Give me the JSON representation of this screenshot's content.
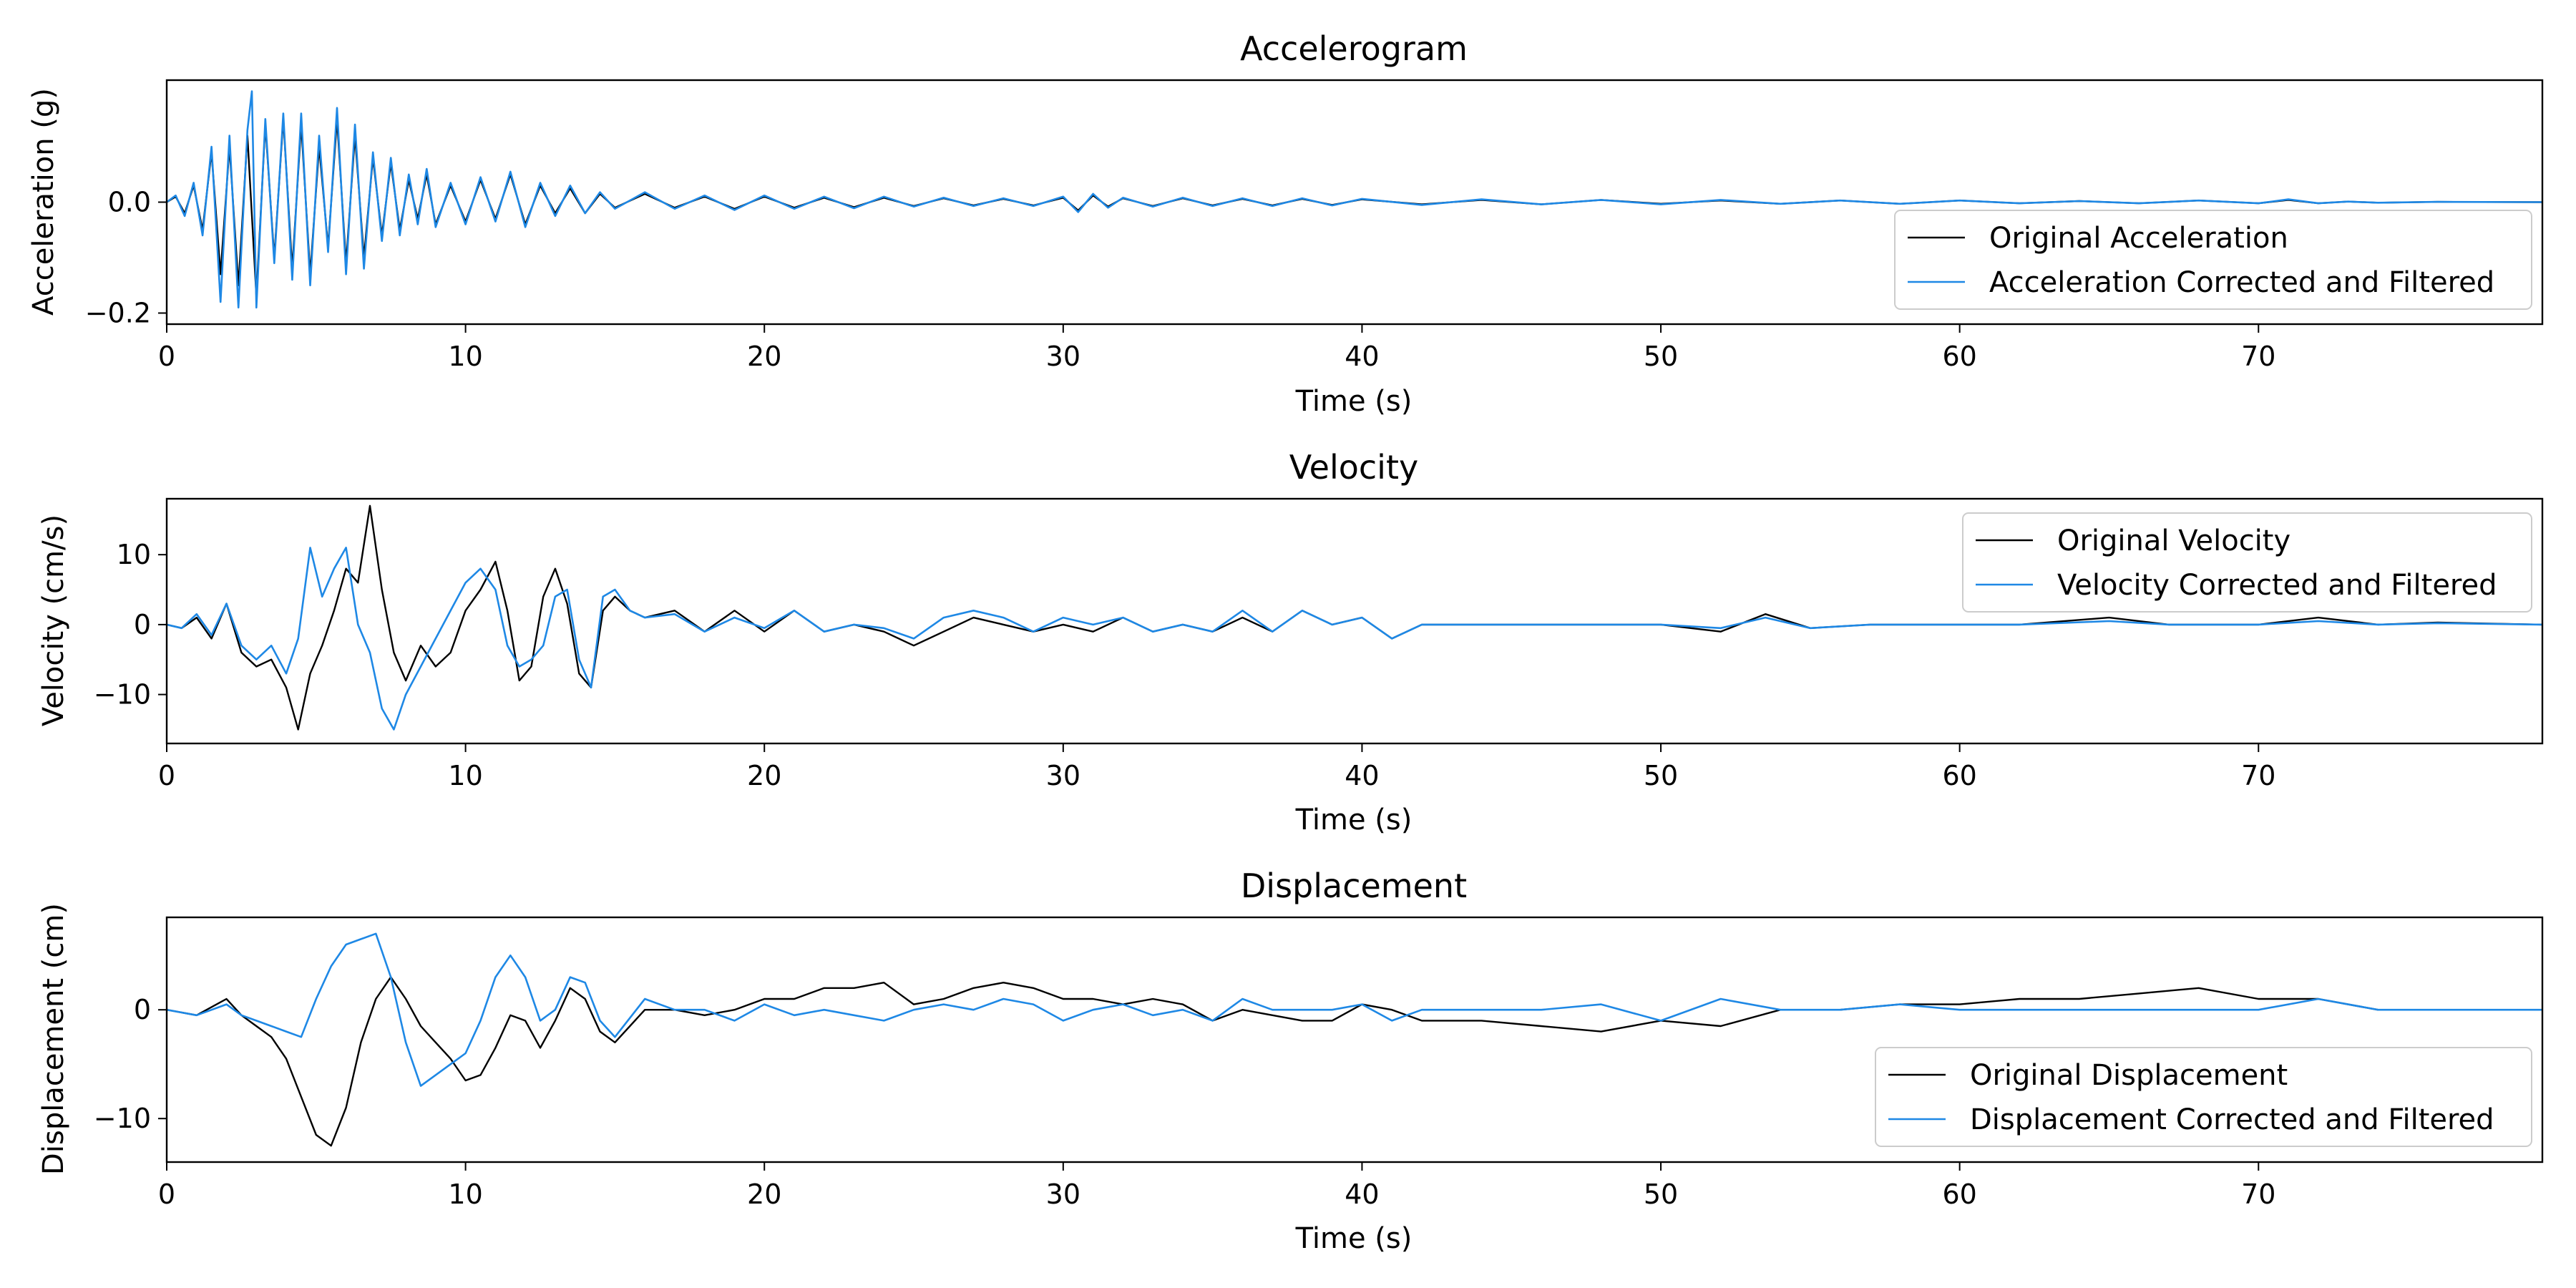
{
  "chart_data": [
    {
      "type": "line",
      "title": "Accelerogram",
      "xlabel": "Time (s)",
      "ylabel": "Acceleration (g)",
      "xlim": [
        0,
        79.5
      ],
      "ylim": [
        -0.22,
        0.22
      ],
      "xticks": [
        0,
        10,
        20,
        30,
        40,
        50,
        60,
        70
      ],
      "yticks": [
        -0.2,
        0.0
      ],
      "ytick_labels": [
        "−0.2",
        "0.0"
      ],
      "grid": false,
      "legend": "lower-right",
      "series": [
        {
          "name": "Original Acceleration",
          "color": "#000000",
          "x": [
            0,
            0.3,
            0.6,
            0.9,
            1.2,
            1.5,
            1.8,
            2.1,
            2.4,
            2.7,
            3.0,
            3.3,
            3.6,
            3.9,
            4.2,
            4.5,
            4.8,
            5.1,
            5.4,
            5.7,
            6.0,
            6.3,
            6.6,
            6.9,
            7.2,
            7.5,
            7.8,
            8.1,
            8.4,
            8.7,
            9.0,
            9.5,
            10.0,
            10.5,
            11.0,
            11.5,
            12.0,
            12.5,
            13.0,
            13.5,
            14.0,
            14.5,
            15.0,
            16,
            17,
            18,
            19,
            20,
            21,
            22,
            23,
            24,
            25,
            26,
            27,
            28,
            29,
            30,
            30.5,
            31,
            31.5,
            32,
            33,
            34,
            35,
            36,
            37,
            38,
            39,
            40,
            42,
            44,
            46,
            48,
            50,
            52,
            54,
            56,
            58,
            60,
            62,
            64,
            66,
            68,
            70,
            71,
            72,
            73,
            74,
            76,
            79.5
          ],
          "values": [
            0,
            0.01,
            -0.02,
            0.03,
            -0.05,
            0.09,
            -0.13,
            0.1,
            -0.15,
            0.12,
            -0.17,
            0.14,
            -0.1,
            0.15,
            -0.12,
            0.14,
            -0.13,
            0.1,
            -0.08,
            0.15,
            -0.11,
            0.12,
            -0.1,
            0.08,
            -0.06,
            0.07,
            -0.05,
            0.04,
            -0.03,
            0.05,
            -0.04,
            0.03,
            -0.035,
            0.04,
            -0.03,
            0.05,
            -0.04,
            0.03,
            -0.02,
            0.025,
            -0.02,
            0.015,
            -0.01,
            0.015,
            -0.01,
            0.01,
            -0.012,
            0.01,
            -0.01,
            0.008,
            -0.009,
            0.008,
            -0.007,
            0.007,
            -0.006,
            0.006,
            -0.006,
            0.008,
            -0.015,
            0.012,
            -0.008,
            0.007,
            -0.007,
            0.007,
            -0.006,
            0.006,
            -0.006,
            0.006,
            -0.005,
            0.005,
            -0.004,
            0.004,
            -0.004,
            0.004,
            -0.003,
            0.003,
            -0.003,
            0.003,
            -0.003,
            0.003,
            -0.002,
            0.002,
            -0.002,
            0.003,
            -0.002,
            0.004,
            -0.002,
            0.001,
            -0.001,
            0.0005,
            0
          ]
        },
        {
          "name": "Acceleration Corrected and Filtered",
          "color": "#1e88e5",
          "x": [
            0,
            0.3,
            0.6,
            0.9,
            1.2,
            1.5,
            1.8,
            2.1,
            2.4,
            2.7,
            2.85,
            3.0,
            3.3,
            3.6,
            3.9,
            4.2,
            4.5,
            4.8,
            5.1,
            5.4,
            5.7,
            6.0,
            6.3,
            6.6,
            6.9,
            7.2,
            7.5,
            7.8,
            8.1,
            8.4,
            8.7,
            9.0,
            9.5,
            10.0,
            10.5,
            11.0,
            11.5,
            12.0,
            12.5,
            13.0,
            13.5,
            14.0,
            14.5,
            15.0,
            16,
            17,
            18,
            19,
            20,
            21,
            22,
            23,
            24,
            25,
            26,
            27,
            28,
            29,
            30,
            30.5,
            31,
            31.5,
            32,
            33,
            34,
            35,
            36,
            37,
            38,
            39,
            40,
            42,
            44,
            46,
            48,
            50,
            52,
            54,
            56,
            58,
            60,
            62,
            64,
            66,
            68,
            70,
            71,
            72,
            73,
            74,
            76,
            79.5
          ],
          "values": [
            0,
            0.012,
            -0.025,
            0.035,
            -0.06,
            0.1,
            -0.18,
            0.12,
            -0.19,
            0.13,
            0.2,
            -0.19,
            0.15,
            -0.11,
            0.16,
            -0.14,
            0.16,
            -0.15,
            0.12,
            -0.09,
            0.17,
            -0.13,
            0.14,
            -0.12,
            0.09,
            -0.07,
            0.08,
            -0.06,
            0.05,
            -0.04,
            0.06,
            -0.045,
            0.035,
            -0.04,
            0.045,
            -0.035,
            0.055,
            -0.045,
            0.035,
            -0.025,
            0.03,
            -0.02,
            0.018,
            -0.012,
            0.018,
            -0.012,
            0.012,
            -0.014,
            0.012,
            -0.012,
            0.01,
            -0.011,
            0.01,
            -0.008,
            0.008,
            -0.007,
            0.007,
            -0.007,
            0.01,
            -0.018,
            0.015,
            -0.01,
            0.008,
            -0.008,
            0.008,
            -0.007,
            0.007,
            -0.007,
            0.007,
            -0.006,
            0.006,
            -0.005,
            0.005,
            -0.004,
            0.004,
            -0.004,
            0.004,
            -0.003,
            0.003,
            -0.003,
            0.003,
            -0.002,
            0.002,
            -0.002,
            0.003,
            -0.002,
            0.005,
            -0.002,
            0.001,
            -0.001,
            0.0005,
            0
          ]
        }
      ]
    },
    {
      "type": "line",
      "title": "Velocity",
      "xlabel": "Time (s)",
      "ylabel": "Velocity (cm/s)",
      "xlim": [
        0,
        79.5
      ],
      "ylim": [
        -17,
        18
      ],
      "xticks": [
        0,
        10,
        20,
        30,
        40,
        50,
        60,
        70
      ],
      "yticks": [
        -10,
        0,
        10
      ],
      "ytick_labels": [
        "−10",
        "0",
        "10"
      ],
      "grid": false,
      "legend": "upper-right",
      "series": [
        {
          "name": "Original Velocity",
          "color": "#000000",
          "x": [
            0,
            0.5,
            1.0,
            1.5,
            2.0,
            2.5,
            3.0,
            3.5,
            4.0,
            4.4,
            4.8,
            5.2,
            5.6,
            6.0,
            6.4,
            6.8,
            7.2,
            7.6,
            8.0,
            8.5,
            9.0,
            9.5,
            10.0,
            10.5,
            11.0,
            11.4,
            11.8,
            12.2,
            12.6,
            13.0,
            13.4,
            13.8,
            14.2,
            14.6,
            15.0,
            15.5,
            16,
            17,
            18,
            19,
            20,
            21,
            22,
            23,
            24,
            25,
            26,
            27,
            28,
            29,
            30,
            31,
            32,
            33,
            34,
            35,
            36,
            37,
            38,
            39,
            40,
            41,
            42,
            44,
            46,
            48,
            50,
            52,
            53.5,
            55,
            57,
            60,
            62,
            65,
            67,
            70,
            72,
            74,
            76,
            79.5
          ],
          "values": [
            0,
            -0.5,
            1,
            -2,
            3,
            -4,
            -6,
            -5,
            -9,
            -15,
            -7,
            -3,
            2,
            8,
            6,
            17,
            5,
            -4,
            -8,
            -3,
            -6,
            -4,
            2,
            5,
            9,
            2,
            -8,
            -6,
            4,
            8,
            3,
            -7,
            -9,
            2,
            4,
            2,
            1,
            2,
            -1,
            2,
            -1,
            2,
            -1,
            0,
            -1,
            -3,
            -1,
            1,
            0,
            -1,
            0,
            -1,
            1,
            -1,
            0,
            -1,
            1,
            -1,
            2,
            0,
            1,
            -2,
            0,
            0,
            0,
            0,
            0,
            -1,
            1.5,
            -0.5,
            0,
            0,
            0,
            1,
            0,
            0,
            1,
            0,
            0.3,
            0
          ]
        },
        {
          "name": "Velocity Corrected and Filtered",
          "color": "#1e88e5",
          "x": [
            0,
            0.5,
            1.0,
            1.5,
            2.0,
            2.5,
            3.0,
            3.5,
            4.0,
            4.4,
            4.8,
            5.2,
            5.6,
            6.0,
            6.4,
            6.8,
            7.2,
            7.6,
            8.0,
            8.5,
            9.0,
            9.5,
            10.0,
            10.5,
            11.0,
            11.4,
            11.8,
            12.2,
            12.6,
            13.0,
            13.4,
            13.8,
            14.2,
            14.6,
            15.0,
            15.5,
            16,
            17,
            18,
            19,
            20,
            21,
            22,
            23,
            24,
            25,
            26,
            27,
            28,
            29,
            30,
            31,
            32,
            33,
            34,
            35,
            36,
            37,
            38,
            39,
            40,
            41,
            42,
            44,
            46,
            48,
            50,
            52,
            53.5,
            55,
            57,
            60,
            62,
            65,
            67,
            70,
            72,
            74,
            76,
            79.5
          ],
          "values": [
            0,
            -0.5,
            1.5,
            -1.5,
            3,
            -3,
            -5,
            -3,
            -7,
            -2,
            11,
            4,
            8,
            11,
            0,
            -4,
            -12,
            -15,
            -10,
            -6,
            -2,
            2,
            6,
            8,
            5,
            -3,
            -6,
            -5,
            -3,
            4,
            5,
            -5,
            -9,
            4,
            5,
            2,
            1,
            1.5,
            -1,
            1,
            -0.5,
            2,
            -1,
            0,
            -0.5,
            -2,
            1,
            2,
            1,
            -1,
            1,
            0,
            1,
            -1,
            0,
            -1,
            2,
            -1,
            2,
            0,
            1,
            -2,
            0,
            0,
            0,
            0,
            0,
            -0.5,
            1,
            -0.5,
            0,
            0,
            0,
            0.5,
            0,
            0,
            0.5,
            0,
            0.2,
            0
          ]
        }
      ]
    },
    {
      "type": "line",
      "title": "Displacement",
      "xlabel": "Time (s)",
      "ylabel": "Displacement (cm)",
      "xlim": [
        0,
        79.5
      ],
      "ylim": [
        -14,
        8.5
      ],
      "xticks": [
        0,
        10,
        20,
        30,
        40,
        50,
        60,
        70
      ],
      "yticks": [
        -10,
        0
      ],
      "ytick_labels": [
        "−10",
        "0"
      ],
      "grid": false,
      "legend": "lower-right",
      "series": [
        {
          "name": "Original Displacement",
          "color": "#000000",
          "x": [
            0,
            1,
            2,
            2.5,
            3,
            3.5,
            4,
            4.5,
            5,
            5.5,
            6,
            6.5,
            7,
            7.5,
            8,
            8.5,
            9,
            9.5,
            10,
            10.5,
            11,
            11.5,
            12,
            12.5,
            13,
            13.5,
            14,
            14.5,
            15,
            16,
            17,
            18,
            19,
            20,
            21,
            22,
            23,
            24,
            25,
            26,
            27,
            28,
            29,
            30,
            31,
            32,
            33,
            34,
            35,
            36,
            37,
            38,
            39,
            40,
            41,
            42,
            44,
            46,
            48,
            50,
            52,
            54,
            56,
            58,
            60,
            62,
            64,
            66,
            68,
            70,
            72,
            74,
            76,
            79.5
          ],
          "values": [
            0,
            -0.5,
            1,
            -0.5,
            -1.5,
            -2.5,
            -4.5,
            -8,
            -11.5,
            -12.5,
            -9,
            -3,
            1,
            3,
            1,
            -1.5,
            -3,
            -4.5,
            -6.5,
            -6,
            -3.5,
            -0.5,
            -1,
            -3.5,
            -1,
            2,
            1,
            -2,
            -3,
            0,
            0,
            -0.5,
            0,
            1,
            1,
            2,
            2,
            2.5,
            0.5,
            1,
            2,
            2.5,
            2,
            1,
            1,
            0.5,
            1,
            0.5,
            -1,
            0,
            -0.5,
            -1,
            -1,
            0.5,
            0,
            -1,
            -1,
            -1.5,
            -2,
            -1,
            -1.5,
            0,
            0,
            0.5,
            0.5,
            1,
            1,
            1.5,
            2,
            1,
            1,
            0,
            0,
            0
          ]
        },
        {
          "name": "Displacement Corrected and Filtered",
          "color": "#1e88e5",
          "x": [
            0,
            1,
            2,
            2.5,
            3,
            3.5,
            4,
            4.5,
            5,
            5.5,
            6,
            6.5,
            7,
            7.5,
            8,
            8.5,
            9,
            9.5,
            10,
            10.5,
            11,
            11.5,
            12,
            12.5,
            13,
            13.5,
            14,
            14.5,
            15,
            16,
            17,
            18,
            19,
            20,
            21,
            22,
            23,
            24,
            25,
            26,
            27,
            28,
            29,
            30,
            31,
            32,
            33,
            34,
            35,
            36,
            37,
            38,
            39,
            40,
            41,
            42,
            44,
            46,
            48,
            50,
            52,
            54,
            56,
            58,
            60,
            62,
            64,
            66,
            68,
            70,
            72,
            74,
            76,
            79.5
          ],
          "values": [
            0,
            -0.5,
            0.5,
            -0.5,
            -1,
            -1.5,
            -2,
            -2.5,
            1,
            4,
            6,
            6.5,
            7,
            3,
            -3,
            -7,
            -6,
            -5,
            -4,
            -1,
            3,
            5,
            3,
            -1,
            0,
            3,
            2.5,
            -1,
            -2.5,
            1,
            0,
            0,
            -1,
            0.5,
            -0.5,
            0,
            -0.5,
            -1,
            0,
            0.5,
            0,
            1,
            0.5,
            -1,
            0,
            0.5,
            -0.5,
            0,
            -1,
            1,
            0,
            0,
            0,
            0.5,
            -1,
            0,
            0,
            0,
            0.5,
            -1,
            1,
            0,
            0,
            0.5,
            0,
            0,
            0,
            0,
            0,
            0,
            1,
            0,
            0,
            0
          ]
        }
      ]
    }
  ]
}
